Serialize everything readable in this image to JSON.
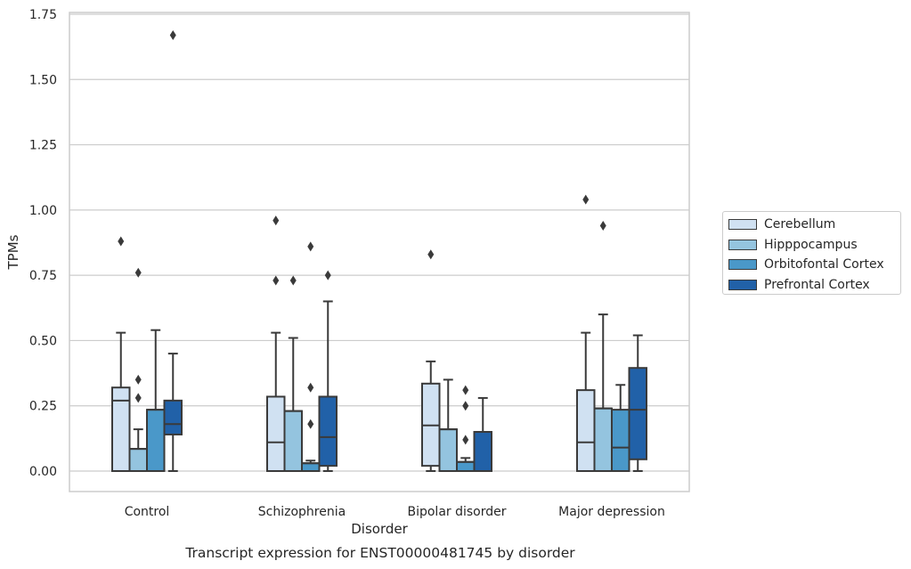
{
  "chart_data": {
    "type": "box",
    "title": "Transcript expression for ENST00000481745 by disorder",
    "xlabel": "Disorder",
    "ylabel": "TPMs",
    "categories": [
      "Control",
      "Schizophrenia",
      "Bipolar disorder",
      "Major depression"
    ],
    "ylim": [
      -0.08,
      1.76
    ],
    "yticks": [
      {
        "value": 0.0,
        "label": "0.00"
      },
      {
        "value": 0.25,
        "label": "0.25"
      },
      {
        "value": 0.5,
        "label": "0.50"
      },
      {
        "value": 0.75,
        "label": "0.75"
      },
      {
        "value": 1.0,
        "label": "1.00"
      },
      {
        "value": 1.25,
        "label": "1.25"
      },
      {
        "value": 1.5,
        "label": "1.50"
      },
      {
        "value": 1.75,
        "label": "1.75"
      }
    ],
    "grid": "horizontal",
    "legend_position": "right",
    "series": [
      {
        "name": "Cerebellum",
        "color": "#d0e1f2",
        "boxes": [
          {
            "whislo": 0.0,
            "q1": 0.0,
            "med": 0.27,
            "q3": 0.32,
            "whishi": 0.53,
            "fliers": [
              0.88
            ]
          },
          {
            "whislo": 0.0,
            "q1": 0.0,
            "med": 0.11,
            "q3": 0.285,
            "whishi": 0.53,
            "fliers": [
              0.96,
              0.73
            ]
          },
          {
            "whislo": 0.0,
            "q1": 0.02,
            "med": 0.175,
            "q3": 0.335,
            "whishi": 0.42,
            "fliers": [
              0.83
            ]
          },
          {
            "whislo": 0.0,
            "q1": 0.0,
            "med": 0.11,
            "q3": 0.31,
            "whishi": 0.53,
            "fliers": [
              1.04
            ]
          }
        ]
      },
      {
        "name": "Hipppocampus",
        "color": "#94c4df",
        "boxes": [
          {
            "whislo": 0.0,
            "q1": 0.0,
            "med": 0.085,
            "q3": 0.085,
            "whishi": 0.16,
            "fliers": [
              0.76,
              0.35,
              0.28
            ]
          },
          {
            "whislo": 0.0,
            "q1": 0.0,
            "med": 0.23,
            "q3": 0.23,
            "whishi": 0.51,
            "fliers": [
              0.73
            ]
          },
          {
            "whislo": 0.0,
            "q1": 0.0,
            "med": 0.16,
            "q3": 0.16,
            "whishi": 0.35,
            "fliers": []
          },
          {
            "whislo": 0.0,
            "q1": 0.0,
            "med": 0.24,
            "q3": 0.24,
            "whishi": 0.6,
            "fliers": [
              0.94
            ]
          }
        ]
      },
      {
        "name": "Orbitofontal Cortex",
        "color": "#4a98c9",
        "boxes": [
          {
            "whislo": 0.0,
            "q1": 0.0,
            "med": 0.235,
            "q3": 0.235,
            "whishi": 0.54,
            "fliers": []
          },
          {
            "whislo": 0.0,
            "q1": 0.0,
            "med": 0.03,
            "q3": 0.03,
            "whishi": 0.04,
            "fliers": [
              0.86,
              0.32,
              0.18
            ]
          },
          {
            "whislo": 0.0,
            "q1": 0.0,
            "med": 0.035,
            "q3": 0.035,
            "whishi": 0.05,
            "fliers": [
              0.31,
              0.25,
              0.12
            ]
          },
          {
            "whislo": 0.0,
            "q1": 0.0,
            "med": 0.09,
            "q3": 0.235,
            "whishi": 0.33,
            "fliers": []
          }
        ]
      },
      {
        "name": "Prefrontal Cortex",
        "color": "#2161a8",
        "boxes": [
          {
            "whislo": 0.0,
            "q1": 0.14,
            "med": 0.18,
            "q3": 0.27,
            "whishi": 0.45,
            "fliers": [
              1.67
            ]
          },
          {
            "whislo": 0.0,
            "q1": 0.02,
            "med": 0.13,
            "q3": 0.285,
            "whishi": 0.65,
            "fliers": [
              0.75
            ]
          },
          {
            "whislo": 0.0,
            "q1": 0.0,
            "med": 0.15,
            "q3": 0.15,
            "whishi": 0.28,
            "fliers": []
          },
          {
            "whislo": 0.0,
            "q1": 0.045,
            "med": 0.235,
            "q3": 0.395,
            "whishi": 0.52,
            "fliers": []
          }
        ]
      }
    ]
  }
}
